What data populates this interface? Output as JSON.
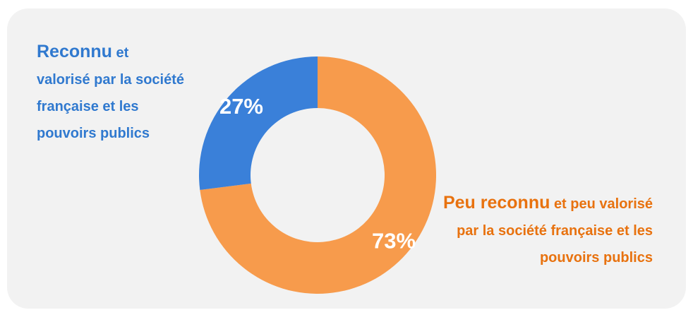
{
  "chart_data": {
    "type": "donut",
    "categories": [
      "Reconnu",
      "Peu reconnu"
    ],
    "category_notes": [
      "et valorisé par la société française et les pouvoirs publics",
      "et peu valorisé par la société française et les pouvoirs publics"
    ],
    "values": [
      27,
      73
    ],
    "value_labels": [
      "27%",
      "73%"
    ],
    "colors": [
      "#3a80d9",
      "#f79b4c"
    ],
    "label_colors": [
      "#3079cf",
      "#e8720f"
    ]
  }
}
